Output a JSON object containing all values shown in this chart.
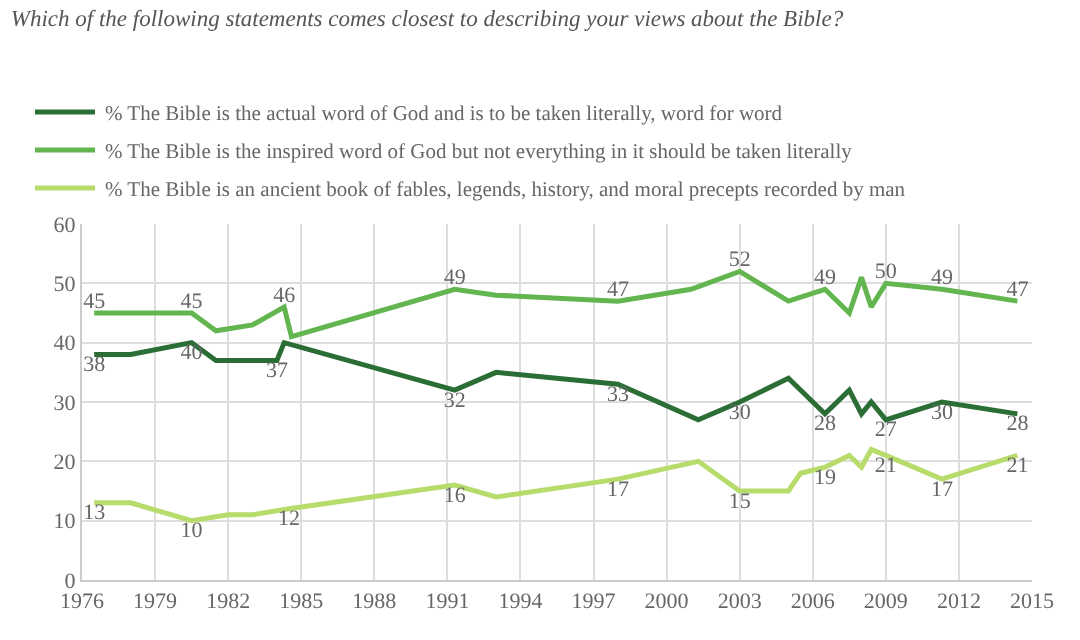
{
  "chart_data": {
    "type": "line",
    "title": "Which of the following statements comes closest to describing your views about the Bible?",
    "xlim": [
      1976,
      2015
    ],
    "xticks": [
      1976,
      1979,
      1982,
      1985,
      1988,
      1991,
      1994,
      1997,
      2000,
      2003,
      2006,
      2009,
      2012,
      2015
    ],
    "ylim": [
      0,
      60
    ],
    "yticks": [
      0,
      10,
      20,
      30,
      40,
      50,
      60
    ],
    "grid": true,
    "legend": "top left",
    "marker": "none",
    "line_style": "solid",
    "series": [
      {
        "name": "% The Bible is the actual word of God and is to be taken literally, word for word",
        "color": "#2b6e35",
        "x": [
          1976.5,
          1978,
          1980.5,
          1981.5,
          1984,
          1984.3,
          1991.3,
          1993,
          1998,
          2001.3,
          2003,
          2005,
          2006.5,
          2007.5,
          2008,
          2008.4,
          2009,
          2011.3,
          2014.4
        ],
        "values": [
          38,
          38,
          40,
          37,
          37,
          40,
          32,
          35,
          33,
          27,
          30,
          34,
          28,
          32,
          28,
          30,
          27,
          30,
          28
        ],
        "value_labels": [
          "38",
          null,
          "40",
          null,
          "37",
          null,
          "32",
          null,
          "33",
          null,
          "30",
          null,
          "28",
          null,
          null,
          null,
          "27",
          "30",
          "28"
        ]
      },
      {
        "name": "% The Bible is the inspired word of God but not everything in it should be taken literally",
        "color": "#62b54f",
        "x": [
          1976.5,
          1980.5,
          1981.5,
          1983,
          1984.3,
          1984.6,
          1991.3,
          1993,
          1998,
          2001,
          2003,
          2005,
          2006.5,
          2007.5,
          2008,
          2008.4,
          2009,
          2011.3,
          2014.4
        ],
        "values": [
          45,
          45,
          42,
          43,
          46,
          41,
          49,
          48,
          47,
          49,
          52,
          47,
          49,
          45,
          51,
          46,
          50,
          49,
          47
        ],
        "value_labels": [
          "45",
          "45",
          null,
          null,
          "46",
          null,
          "49",
          null,
          "47",
          null,
          "52",
          null,
          "49",
          null,
          null,
          null,
          "50",
          "49",
          "47"
        ]
      },
      {
        "name": "% The Bible is an ancient book of fables, legends, history, and moral precepts recorded by man",
        "color": "#b7dc6c",
        "x": [
          1976.5,
          1978,
          1980.5,
          1982,
          1983,
          1984.5,
          1991.3,
          1993,
          1998,
          2001.3,
          2003,
          2005,
          2005.5,
          2006.5,
          2007.5,
          2008,
          2008.4,
          2009,
          2011.3,
          2014.4
        ],
        "values": [
          13,
          13,
          10,
          11,
          11,
          12,
          16,
          14,
          17,
          20,
          15,
          15,
          18,
          19,
          21,
          19,
          22,
          21,
          17,
          21
        ],
        "value_labels": [
          "13",
          null,
          "10",
          null,
          null,
          "12",
          "16",
          null,
          "17",
          null,
          "15",
          null,
          null,
          "19",
          null,
          null,
          null,
          "21",
          "17",
          "21"
        ]
      }
    ]
  }
}
